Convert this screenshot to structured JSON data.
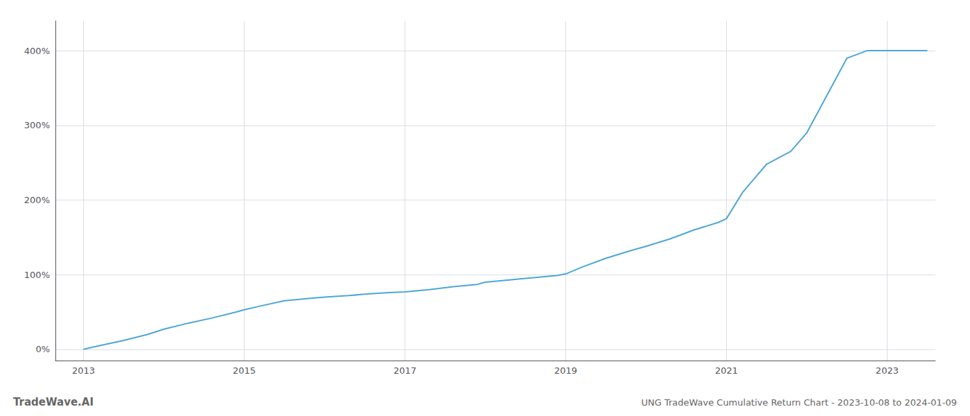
{
  "chart_data": {
    "type": "line",
    "title": "UNG TradeWave Cumulative Return Chart - 2023-10-08 to 2024-01-09",
    "annotations": [
      "TradeWave.AI"
    ],
    "x": [
      2013.0,
      2013.2,
      2013.5,
      2013.8,
      2014.0,
      2014.3,
      2014.6,
      2014.9,
      2015.0,
      2015.2,
      2015.5,
      2015.8,
      2016.0,
      2016.3,
      2016.5,
      2016.8,
      2017.0,
      2017.3,
      2017.6,
      2017.9,
      2018.0,
      2018.3,
      2018.6,
      2018.9,
      2019.0,
      2019.2,
      2019.5,
      2019.8,
      2020.0,
      2020.3,
      2020.6,
      2020.9,
      2021.0,
      2021.2,
      2021.5,
      2021.8,
      2022.0,
      2022.2,
      2022.5,
      2022.75,
      2023.0,
      2023.3,
      2023.5
    ],
    "values": [
      0.0,
      5.0,
      12.0,
      20.0,
      27.0,
      35.0,
      42.0,
      50.0,
      53.0,
      58.0,
      65.0,
      68.0,
      70.0,
      72.0,
      74.0,
      76.0,
      77.0,
      80.0,
      84.0,
      87.0,
      90.0,
      93.0,
      96.0,
      99.0,
      101.0,
      110.0,
      122.0,
      132.0,
      138.0,
      148.0,
      160.0,
      170.0,
      175.0,
      210.0,
      248.0,
      265.0,
      290.0,
      330.0,
      390.0,
      400.0,
      400.0,
      400.0,
      400.0
    ],
    "color": "#4da6d8",
    "xlim": [
      2012.65,
      2023.6
    ],
    "ylim": [
      -15,
      440
    ],
    "xticks": [
      2013,
      2015,
      2017,
      2019,
      2021,
      2023
    ],
    "yticks": [
      {
        "value": 0,
        "label": "0%"
      },
      {
        "value": 100,
        "label": "100%"
      },
      {
        "value": 200,
        "label": "200%"
      },
      {
        "value": 300,
        "label": "300%"
      },
      {
        "value": 400,
        "label": "400%"
      }
    ],
    "grid": true
  }
}
